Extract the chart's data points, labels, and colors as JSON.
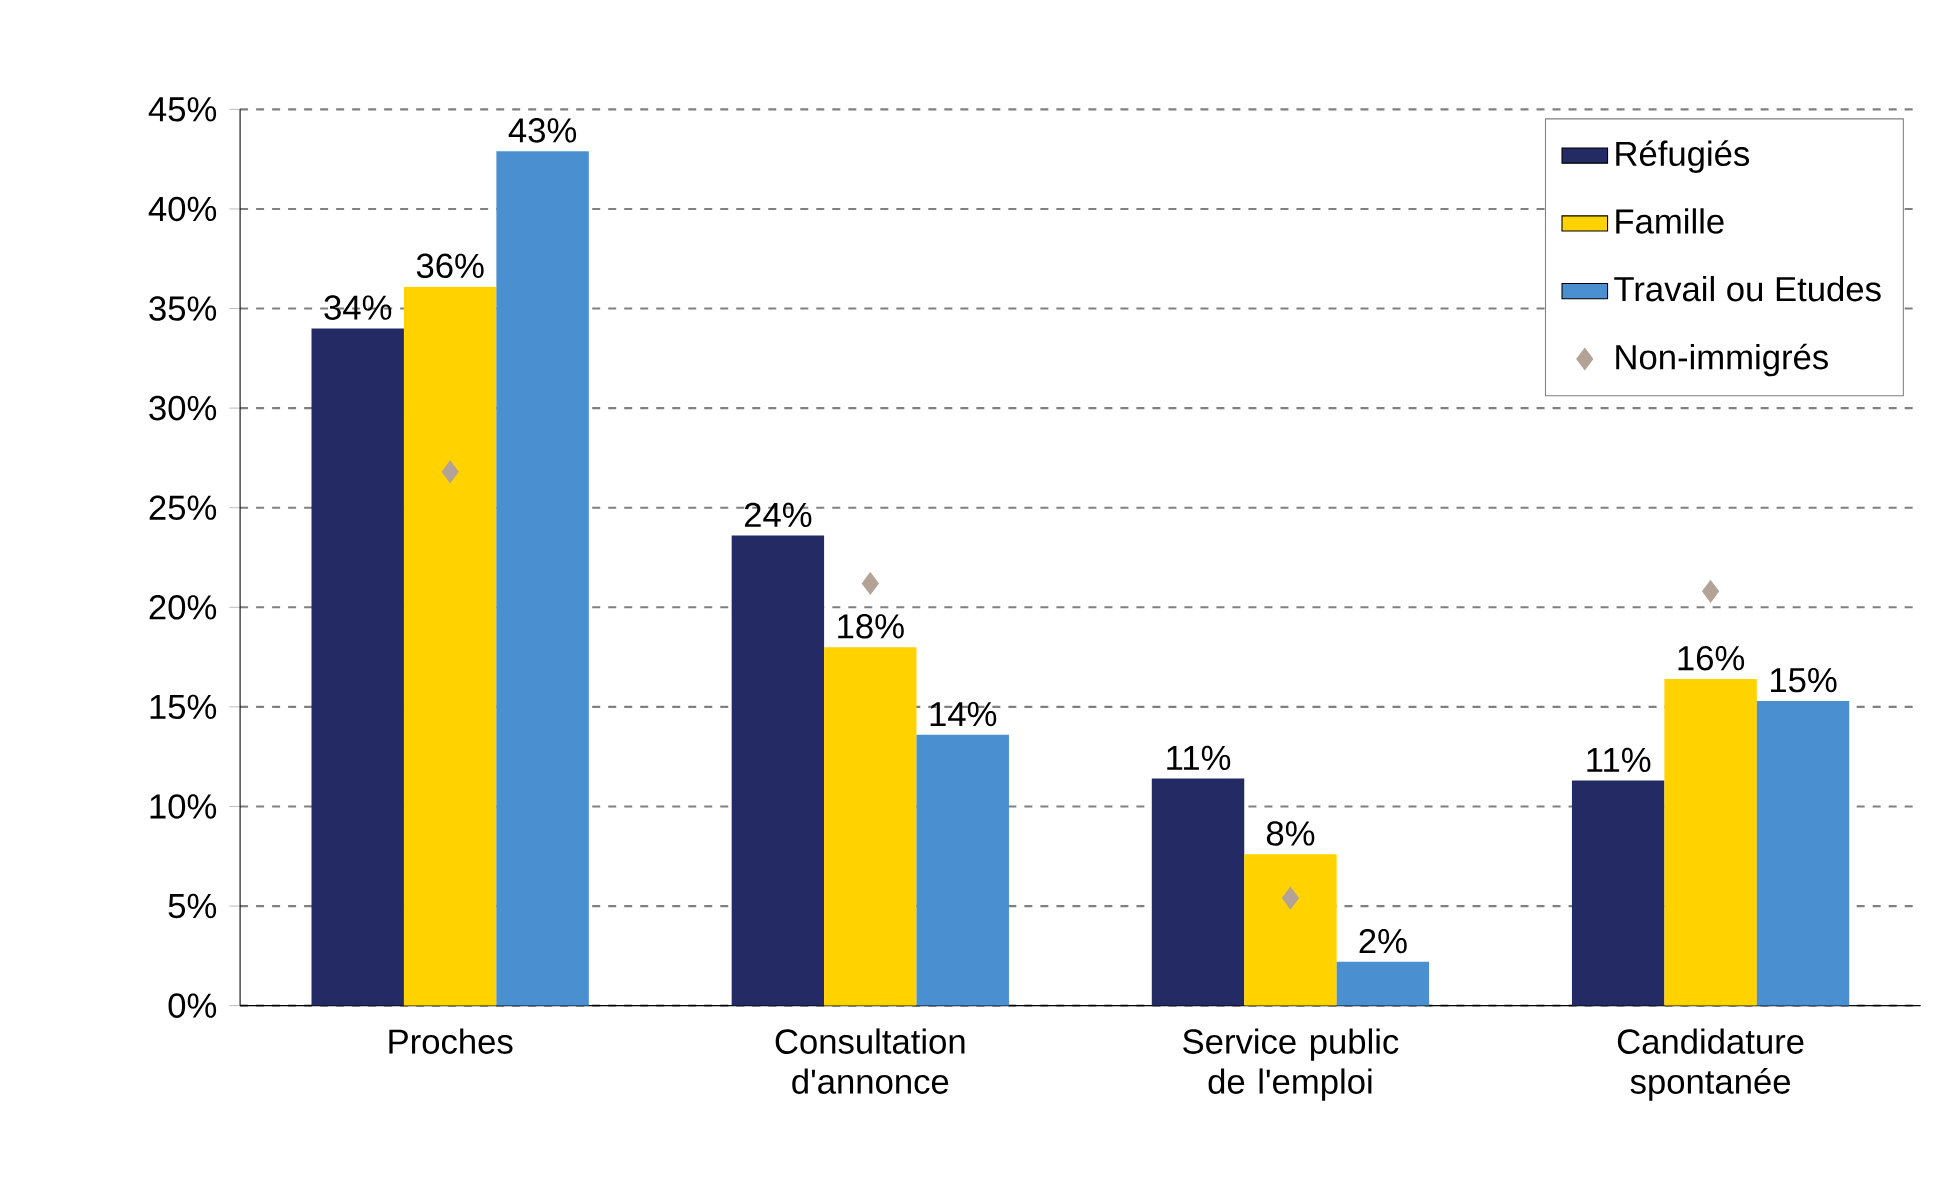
{
  "chart_data": {
    "type": "bar",
    "categories": [
      "Proches",
      "Consultation d'annonce",
      "Service public de l'emploi",
      "Candidature spontanée"
    ],
    "series": [
      {
        "name": "Réfugiés",
        "color": "#232a64",
        "values": [
          34.0,
          23.6,
          11.4,
          11.3
        ],
        "value_labels": [
          "34%",
          "24%",
          "11%",
          "11%"
        ]
      },
      {
        "name": "Famille",
        "color": "#ffd200",
        "values": [
          36.1,
          18.0,
          7.6,
          16.4
        ],
        "value_labels": [
          "36%",
          "18%",
          "8%",
          "16%"
        ]
      },
      {
        "name": "Travail ou Etudes",
        "color": "#4a90d0",
        "values": [
          42.9,
          13.6,
          2.2,
          15.3
        ],
        "value_labels": [
          "43%",
          "14%",
          "2%",
          "15%"
        ]
      },
      {
        "name": "Non-immigrés",
        "type": "scatter",
        "marker": "diamond",
        "color": "#b3a396",
        "values": [
          26.8,
          21.2,
          5.4,
          20.8
        ]
      }
    ],
    "ylim": [
      0,
      45
    ],
    "yticks": [
      {
        "value": 0,
        "label": "0%"
      },
      {
        "value": 5,
        "label": "5%"
      },
      {
        "value": 10,
        "label": "10%"
      },
      {
        "value": 15,
        "label": "15%"
      },
      {
        "value": 20,
        "label": "20%"
      },
      {
        "value": 25,
        "label": "25%"
      },
      {
        "value": 30,
        "label": "30%"
      },
      {
        "value": 35,
        "label": "35%"
      },
      {
        "value": 40,
        "label": "40%"
      },
      {
        "value": 45,
        "label": "45%"
      }
    ],
    "grid": "y",
    "legend": "top right"
  }
}
